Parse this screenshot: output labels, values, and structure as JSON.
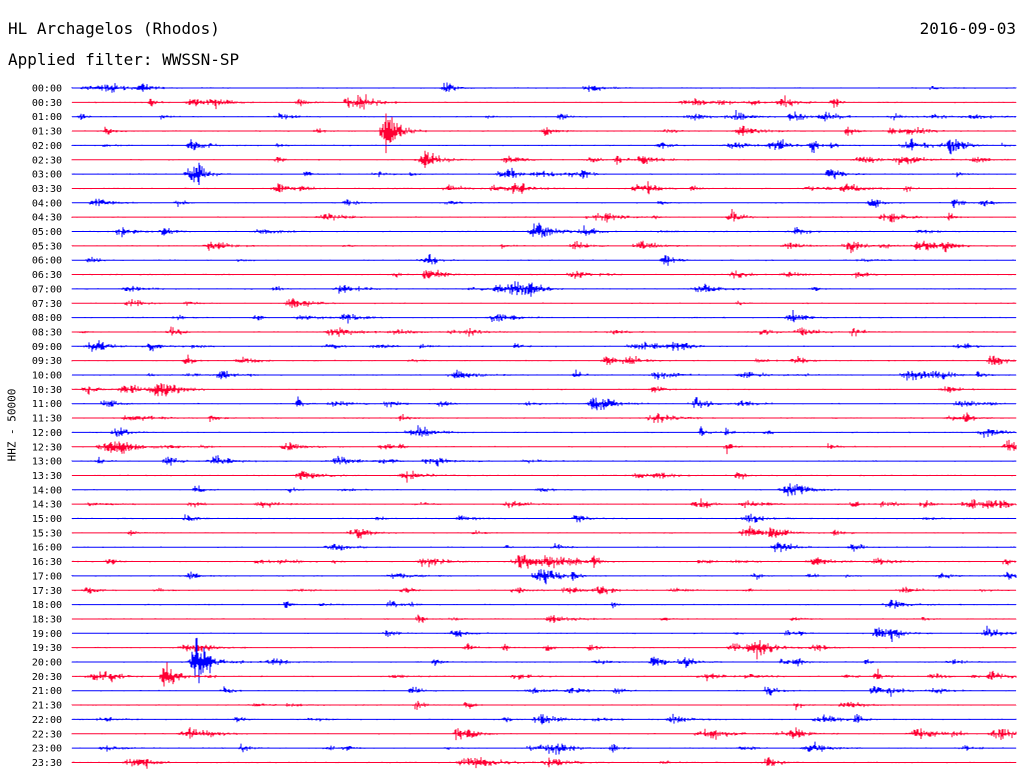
{
  "header": {
    "station": "HL Archagelos (Rhodos)",
    "date": "2016-09-03",
    "filter": "Applied filter: WWSSN-SP"
  },
  "chart_data": {
    "type": "line",
    "title": "HL Archagelos (Rhodos)",
    "ylabel": "HHZ - 50000",
    "row_labels": [
      "00:00",
      "00:30",
      "01:00",
      "01:30",
      "02:00",
      "02:30",
      "03:00",
      "03:30",
      "04:00",
      "04:30",
      "05:00",
      "05:30",
      "06:00",
      "06:30",
      "07:00",
      "07:30",
      "08:00",
      "08:30",
      "09:00",
      "09:30",
      "10:00",
      "10:30",
      "11:00",
      "11:30",
      "12:00",
      "12:30",
      "13:00",
      "13:30",
      "14:00",
      "14:30",
      "15:00",
      "15:30",
      "16:00",
      "16:30",
      "17:00",
      "17:30",
      "18:00",
      "18:30",
      "19:00",
      "19:30",
      "20:00",
      "20:30",
      "21:00",
      "21:30",
      "22:00",
      "22:30",
      "23:00",
      "23:30"
    ],
    "row_colors": [
      "#0000ff",
      "#ff0033"
    ],
    "row_minutes": 30,
    "grid": false,
    "notable_events": [
      {
        "row": "01:30",
        "minute": 10,
        "amplitude": "very large"
      },
      {
        "row": "20:00",
        "minute": 4,
        "amplitude": "very large"
      },
      {
        "row": "20:30",
        "minute": 3,
        "amplitude": "large"
      }
    ]
  }
}
